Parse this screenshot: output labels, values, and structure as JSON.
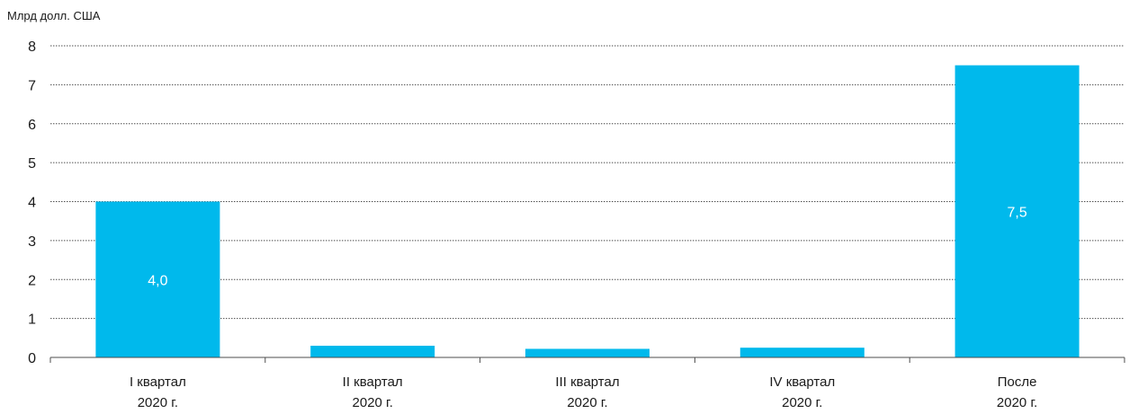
{
  "chart_data": {
    "type": "bar",
    "ylabel": "Млрд долл. США",
    "ylim": [
      0,
      8
    ],
    "yticks": [
      "0",
      "1",
      "2",
      "3",
      "4",
      "5",
      "6",
      "7",
      "8"
    ],
    "grid": true,
    "bar_color": "#00b9ec",
    "categories": [
      [
        "I квартал",
        "2020 г."
      ],
      [
        "II квартал",
        "2020 г."
      ],
      [
        "III квартал",
        "2020 г."
      ],
      [
        "IV квартал",
        "2020 г."
      ],
      [
        "После",
        "2020 г."
      ]
    ],
    "values": [
      4.0,
      0.3,
      0.22,
      0.25,
      7.5
    ],
    "data_labels": [
      "4,0",
      "",
      "",
      "",
      "7,5"
    ]
  }
}
